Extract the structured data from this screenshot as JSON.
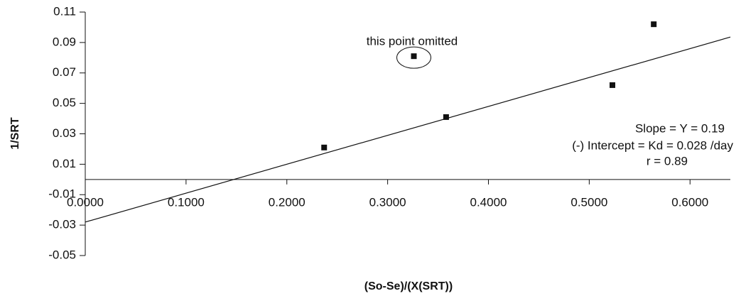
{
  "chart_data": {
    "type": "scatter",
    "x_label": "(So-Se)/(X(SRT))",
    "y_label": "1/SRT",
    "series": [
      {
        "color": "#111111",
        "x": [
          0.237,
          0.358,
          0.326,
          0.523,
          0.564
        ],
        "values": [
          0.021,
          0.041,
          0.081,
          0.062,
          0.102
        ]
      }
    ],
    "fit_line": {
      "color": "#111111",
      "x": [
        0,
        0.64
      ],
      "values": [
        -0.028,
        0.0936
      ]
    },
    "xlim": [
      0,
      0.64
    ],
    "ylim": [
      -0.05,
      0.11
    ],
    "xticks": [
      {
        "value": 0,
        "label": "0.0000"
      },
      {
        "value": 0.1,
        "label": "0.1000"
      },
      {
        "value": 0.2,
        "label": "0.2000"
      },
      {
        "value": 0.3,
        "label": "0.3000"
      },
      {
        "value": 0.4,
        "label": "0.4000"
      },
      {
        "value": 0.5,
        "label": "0.5000"
      },
      {
        "value": 0.6,
        "label": "0.6000"
      }
    ],
    "yticks": [
      0.11,
      0.09,
      0.07,
      0.05,
      0.03,
      0.01,
      -0.01,
      -0.03,
      -0.05
    ],
    "annotations": [
      "this point omitted",
      "Slope = Y = 0.19",
      "(-) Intercept = Kd = 0.028 /day",
      "r = 0.89"
    ]
  }
}
